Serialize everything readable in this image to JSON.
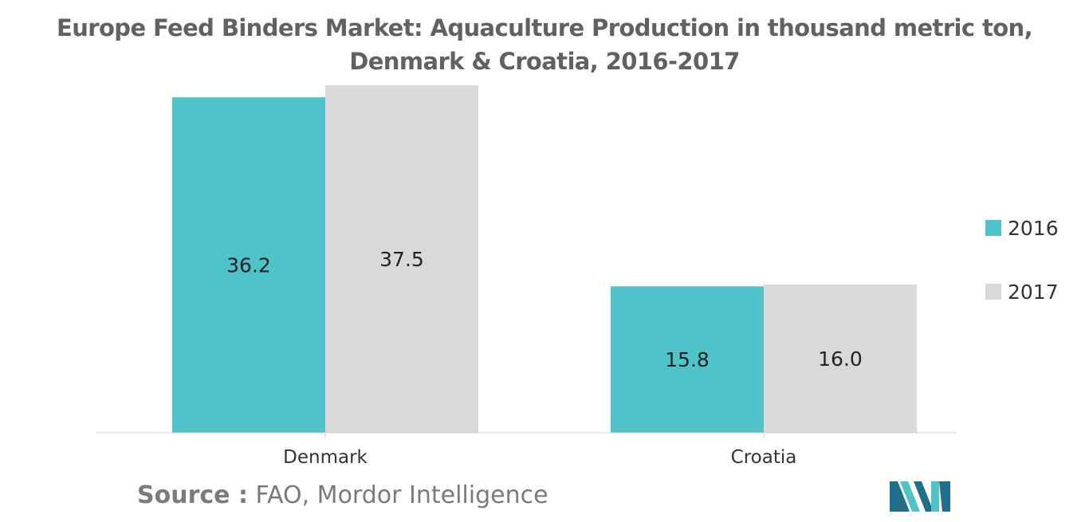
{
  "chart_data": {
    "type": "bar",
    "title": "Europe Feed Binders Market: Aquaculture Production in thousand metric ton, Denmark & Croatia, 2016-2017",
    "categories": [
      "Denmark",
      "Croatia"
    ],
    "series": [
      {
        "name": "2016",
        "values": [
          36.2,
          15.8
        ],
        "color": "#4fc3c9"
      },
      {
        "name": "2017",
        "values": [
          37.5,
          16.0
        ],
        "color": "#d9d9d9"
      }
    ],
    "ylim": [
      0,
      37.5
    ],
    "xlabel": "",
    "ylabel": "",
    "legend_position": "right",
    "grid": false,
    "axis_color": "#d0d0d0"
  },
  "source": {
    "key": "Source :",
    "value": "FAO, Mordor Intelligence"
  },
  "logo": {
    "icon": "mordor-intelligence-logo-icon",
    "colors": [
      "#1f6f8b",
      "#4fc3c9"
    ]
  }
}
